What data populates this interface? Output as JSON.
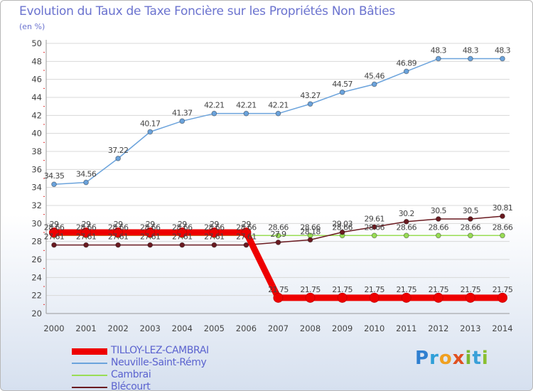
{
  "header": {
    "title": "Evolution du Taux de Taxe Foncière sur les Propriétés Non Bâties",
    "unit": "(en %)"
  },
  "logo": {
    "text": "Proxiti",
    "letters": [
      {
        "ch": "P",
        "color": "#2f7fd0"
      },
      {
        "ch": "r",
        "color": "#2f9fd8"
      },
      {
        "ch": "o",
        "color": "#f0a020"
      },
      {
        "ch": "x",
        "color": "#e05020"
      },
      {
        "ch": "i",
        "color": "#7ab830"
      },
      {
        "ch": "t",
        "color": "#3aa0d8"
      },
      {
        "ch": "i",
        "color": "#8abf30"
      }
    ]
  },
  "chart_data": {
    "type": "line",
    "title": "Evolution du Taux de Taxe Foncière sur les Propriétés Non Bâties",
    "ylabel": "(en %)",
    "xlabel": "",
    "x": [
      "2000",
      "2001",
      "2002",
      "2003",
      "2004",
      "2005",
      "2006",
      "2007",
      "2008",
      "2009",
      "2010",
      "2011",
      "2012",
      "2013",
      "2014"
    ],
    "ylim": [
      20,
      50
    ],
    "yticks": [
      20,
      22,
      24,
      26,
      28,
      30,
      32,
      34,
      36,
      38,
      40,
      42,
      44,
      46,
      48,
      50
    ],
    "grid": "horizontal",
    "legend_position": "bottom-left",
    "series": [
      {
        "name": "TILLOY-LEZ-CAMBRAI",
        "color": "#ee0000",
        "values": [
          29,
          29,
          29,
          29,
          29,
          29,
          29,
          21.75,
          21.75,
          21.75,
          21.75,
          21.75,
          21.75,
          21.75,
          21.75
        ],
        "labels": [
          "29",
          "29",
          "29",
          "29",
          "29",
          "29",
          "29",
          "21.75",
          "21.75",
          "21.75",
          "21.75",
          "21.75",
          "21.75",
          "21.75",
          "21.75"
        ]
      },
      {
        "name": "Neuville-Saint-Rémy",
        "color": "#6ba3dc",
        "values": [
          34.35,
          34.56,
          37.22,
          40.17,
          41.37,
          42.21,
          42.21,
          42.21,
          43.27,
          44.57,
          45.46,
          46.89,
          48.3,
          48.3,
          48.3
        ],
        "labels": [
          "34.35",
          "34.56",
          "37.22",
          "40.17",
          "41.37",
          "42.21",
          "42.21",
          "42.21",
          "43.27",
          "44.57",
          "45.46",
          "46.89",
          "48.3",
          "48.3",
          "48.3"
        ]
      },
      {
        "name": "Cambrai",
        "color": "#99dd55",
        "values": [
          28.66,
          28.66,
          28.66,
          28.66,
          28.66,
          28.66,
          28.66,
          28.66,
          28.66,
          28.66,
          28.66,
          28.66,
          28.66,
          28.66,
          28.66
        ],
        "labels": [
          "28.66",
          "28.66",
          "28.66",
          "28.66",
          "28.66",
          "28.66",
          "28.66",
          "28.66",
          "28.66",
          "28.66",
          "28.66",
          "28.66",
          "28.66",
          "28.66",
          "28.66"
        ]
      },
      {
        "name": "Blécourt",
        "color": "#6a1a20",
        "values": [
          27.61,
          27.61,
          27.61,
          27.61,
          27.61,
          27.61,
          27.61,
          27.9,
          28.18,
          29.03,
          29.61,
          30.2,
          30.5,
          30.5,
          30.81
        ],
        "labels": [
          "27.61",
          "27.61",
          "27.61",
          "27.61",
          "27.61",
          "27.61",
          "27.61",
          "27.9",
          "28.18",
          "29.03",
          "29.61",
          "30.2",
          "30.5",
          "30.5",
          "30.81"
        ]
      }
    ]
  }
}
